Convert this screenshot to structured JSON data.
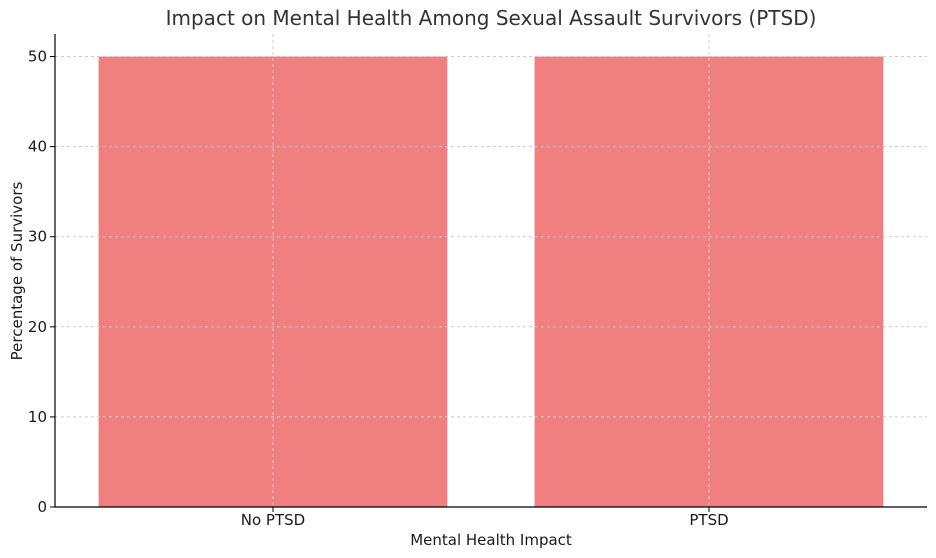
{
  "chart_data": {
    "type": "bar",
    "title": "Impact on Mental Health Among Sexual Assault Survivors (PTSD)",
    "xlabel": "Mental Health Impact",
    "ylabel": "Percentage of Survivors",
    "categories": [
      "No PTSD",
      "PTSD"
    ],
    "values": [
      50,
      50
    ],
    "ylim": [
      0,
      52.5
    ],
    "yticks": [
      0,
      10,
      20,
      30,
      40,
      50
    ],
    "bar_color": "#f08080",
    "grid": true
  }
}
